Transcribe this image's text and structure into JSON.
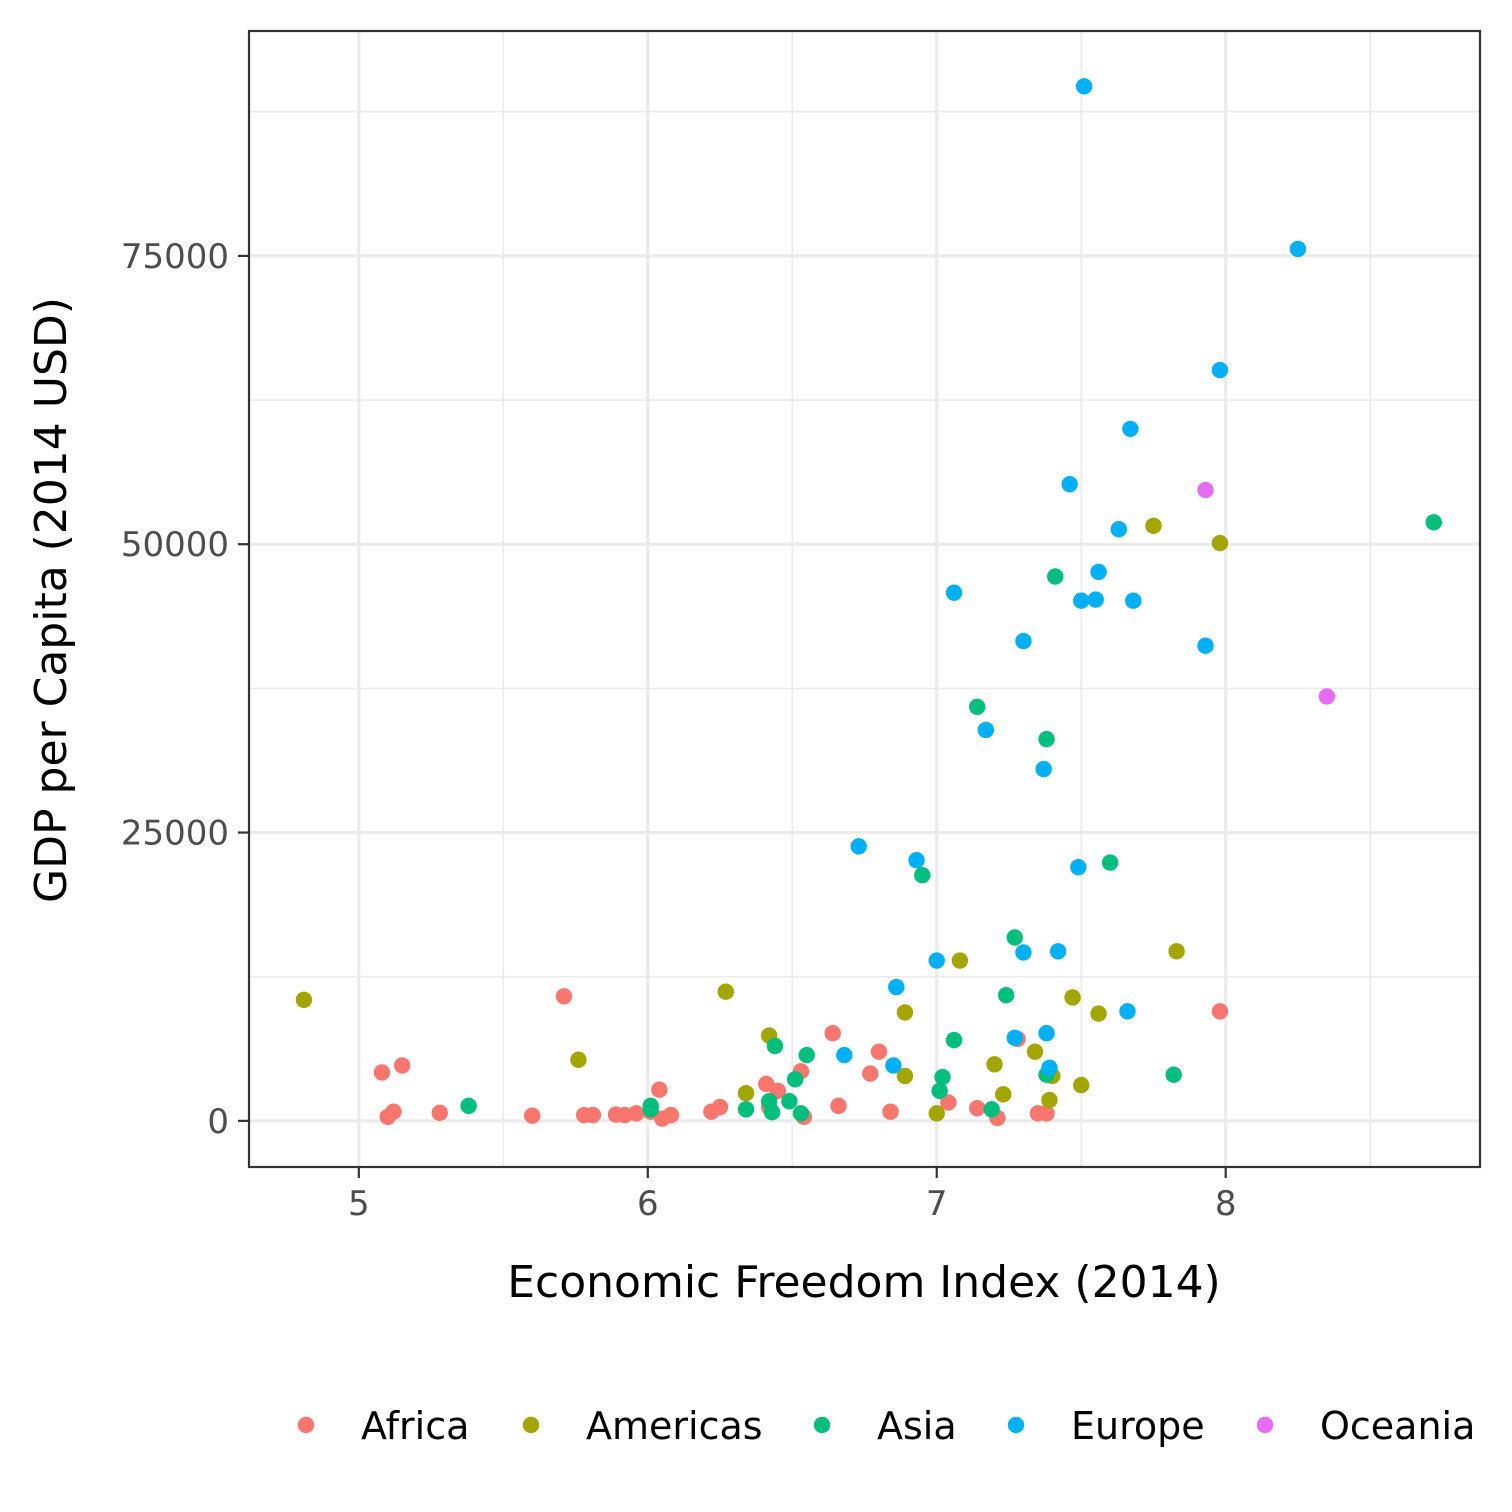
{
  "chart_data": {
    "type": "scatter",
    "xlabel": "Economic Freedom Index (2014)",
    "ylabel": "GDP per Capita (2014 USD)",
    "xlim": [
      4.62,
      8.88
    ],
    "ylim": [
      -4000,
      94500
    ],
    "x_ticks": [
      5,
      6,
      7,
      8
    ],
    "x_tick_labels": [
      "5",
      "6",
      "7",
      "8"
    ],
    "y_ticks": [
      0,
      25000,
      50000,
      75000
    ],
    "y_tick_labels": [
      "0",
      "25000",
      "50000",
      "75000"
    ],
    "x_minor": [
      5.5,
      6.5,
      7.5,
      8.5
    ],
    "y_minor": [
      12500,
      37500,
      62500,
      87500
    ],
    "grid": true,
    "legend_position": "bottom",
    "series": [
      {
        "name": "Africa",
        "color": "#F8766D",
        "points": [
          [
            5.08,
            4200
          ],
          [
            5.1,
            350
          ],
          [
            5.12,
            800
          ],
          [
            5.15,
            4800
          ],
          [
            5.28,
            700
          ],
          [
            5.6,
            450
          ],
          [
            5.71,
            10800
          ],
          [
            5.78,
            500
          ],
          [
            5.81,
            500
          ],
          [
            5.89,
            550
          ],
          [
            5.92,
            500
          ],
          [
            5.96,
            650
          ],
          [
            6.01,
            800
          ],
          [
            6.04,
            2700
          ],
          [
            6.05,
            200
          ],
          [
            6.08,
            500
          ],
          [
            6.22,
            800
          ],
          [
            6.25,
            1200
          ],
          [
            6.41,
            3200
          ],
          [
            6.42,
            1200
          ],
          [
            6.45,
            2600
          ],
          [
            6.53,
            4300
          ],
          [
            6.54,
            350
          ],
          [
            6.64,
            7600
          ],
          [
            6.66,
            1300
          ],
          [
            6.77,
            4100
          ],
          [
            6.8,
            6000
          ],
          [
            6.84,
            800
          ],
          [
            7.04,
            1600
          ],
          [
            7.14,
            1100
          ],
          [
            7.21,
            250
          ],
          [
            7.28,
            7100
          ],
          [
            7.35,
            650
          ],
          [
            7.38,
            650
          ],
          [
            7.98,
            9500
          ]
        ]
      },
      {
        "name": "Americas",
        "color": "#A3A500",
        "points": [
          [
            4.81,
            10500
          ],
          [
            5.76,
            5300
          ],
          [
            6.27,
            11200
          ],
          [
            6.34,
            2400
          ],
          [
            6.42,
            7400
          ],
          [
            6.89,
            9400
          ],
          [
            6.89,
            3900
          ],
          [
            7.0,
            650
          ],
          [
            7.08,
            13900
          ],
          [
            7.2,
            4900
          ],
          [
            7.23,
            2300
          ],
          [
            7.34,
            6000
          ],
          [
            7.39,
            1800
          ],
          [
            7.4,
            3900
          ],
          [
            7.47,
            10700
          ],
          [
            7.5,
            3100
          ],
          [
            7.56,
            9300
          ],
          [
            7.75,
            51600
          ],
          [
            7.83,
            14700
          ],
          [
            7.98,
            50100
          ]
        ]
      },
      {
        "name": "Asia",
        "color": "#00BF7D",
        "points": [
          [
            5.38,
            1300
          ],
          [
            6.01,
            1300
          ],
          [
            6.01,
            1000
          ],
          [
            6.34,
            1000
          ],
          [
            6.42,
            1700
          ],
          [
            6.43,
            750
          ],
          [
            6.44,
            6500
          ],
          [
            6.49,
            1700
          ],
          [
            6.51,
            3600
          ],
          [
            6.53,
            650
          ],
          [
            6.55,
            5700
          ],
          [
            6.95,
            21300
          ],
          [
            7.01,
            2600
          ],
          [
            7.02,
            3800
          ],
          [
            7.06,
            7000
          ],
          [
            7.14,
            35900
          ],
          [
            7.19,
            1000
          ],
          [
            7.24,
            10900
          ],
          [
            7.27,
            15900
          ],
          [
            7.38,
            4000
          ],
          [
            7.38,
            33100
          ],
          [
            7.41,
            47200
          ],
          [
            7.6,
            22400
          ],
          [
            7.82,
            4000
          ],
          [
            8.72,
            51900
          ]
        ]
      },
      {
        "name": "Europe",
        "color": "#00B0F6",
        "points": [
          [
            6.68,
            5700
          ],
          [
            6.73,
            23800
          ],
          [
            6.85,
            4800
          ],
          [
            6.86,
            11600
          ],
          [
            6.93,
            22600
          ],
          [
            7.0,
            13900
          ],
          [
            7.06,
            45800
          ],
          [
            7.17,
            33900
          ],
          [
            7.27,
            7200
          ],
          [
            7.3,
            14600
          ],
          [
            7.3,
            41600
          ],
          [
            7.37,
            30500
          ],
          [
            7.38,
            7600
          ],
          [
            7.39,
            4600
          ],
          [
            7.42,
            14700
          ],
          [
            7.46,
            55200
          ],
          [
            7.49,
            22000
          ],
          [
            7.5,
            45100
          ],
          [
            7.51,
            89700
          ],
          [
            7.55,
            45200
          ],
          [
            7.56,
            47600
          ],
          [
            7.63,
            51300
          ],
          [
            7.66,
            9500
          ],
          [
            7.67,
            60000
          ],
          [
            7.68,
            45100
          ],
          [
            7.93,
            41200
          ],
          [
            7.98,
            65100
          ],
          [
            8.25,
            75600
          ]
        ]
      },
      {
        "name": "Oceania",
        "color": "#E76BF3",
        "points": [
          [
            7.93,
            54700
          ],
          [
            8.35,
            36800
          ]
        ]
      }
    ]
  }
}
